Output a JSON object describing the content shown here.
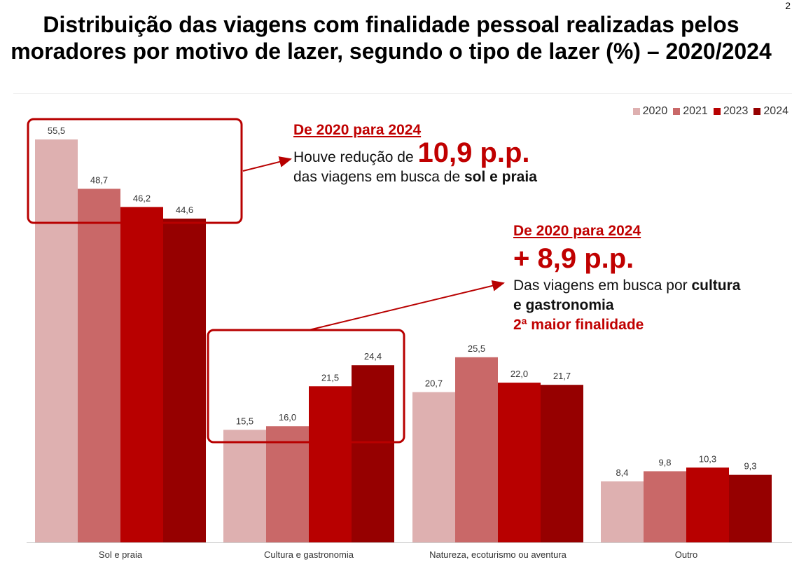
{
  "page_number": "2",
  "title": "Distribuição das viagens com finalidade pessoal realizadas pelos moradores por motivo de lazer, segundo o tipo de lazer (%) – 2020/2024",
  "colors": {
    "2020": "#deb0b0",
    "2021": "#c96868",
    "2023": "#b80000",
    "2024": "#960000",
    "accent": "#c00000",
    "box": "#b80000"
  },
  "chart_data": {
    "type": "bar",
    "categories": [
      "Sol e praia",
      "Cultura e gastronomia",
      "Natureza, ecoturismo ou aventura",
      "Outro"
    ],
    "series": [
      {
        "name": "2020",
        "values": [
          55.5,
          15.5,
          20.7,
          8.4
        ],
        "labels": [
          "55,5",
          "15,5",
          "20,7",
          "8,4"
        ]
      },
      {
        "name": "2021",
        "values": [
          48.7,
          16.0,
          25.5,
          9.8
        ],
        "labels": [
          "48,7",
          "16,0",
          "25,5",
          "9,8"
        ]
      },
      {
        "name": "2023",
        "values": [
          46.2,
          21.5,
          22.0,
          10.3
        ],
        "labels": [
          "46,2",
          "21,5",
          "22,0",
          "10,3"
        ]
      },
      {
        "name": "2024",
        "values": [
          44.6,
          24.4,
          21.7,
          9.3
        ],
        "labels": [
          "44,6",
          "24,4",
          "21,7",
          "9,3"
        ]
      }
    ],
    "ylim": [
      0,
      55.5
    ],
    "legend_position": "top-right",
    "grid": false
  },
  "annotation1": {
    "heading": "De 2020 para 2024",
    "line1_prefix": "Houve redução de ",
    "line1_value": "10,9 p.p.",
    "line2_prefix": "das viagens em busca de ",
    "line2_bold": "sol e praia"
  },
  "annotation2": {
    "heading": "De 2020 para 2024",
    "value": "+ 8,9 p.p.",
    "line1_prefix": "Das viagens em busca por ",
    "line1_bold": "cultura",
    "line2_bold": "e gastronomia",
    "line3": "2ª maior finalidade"
  }
}
